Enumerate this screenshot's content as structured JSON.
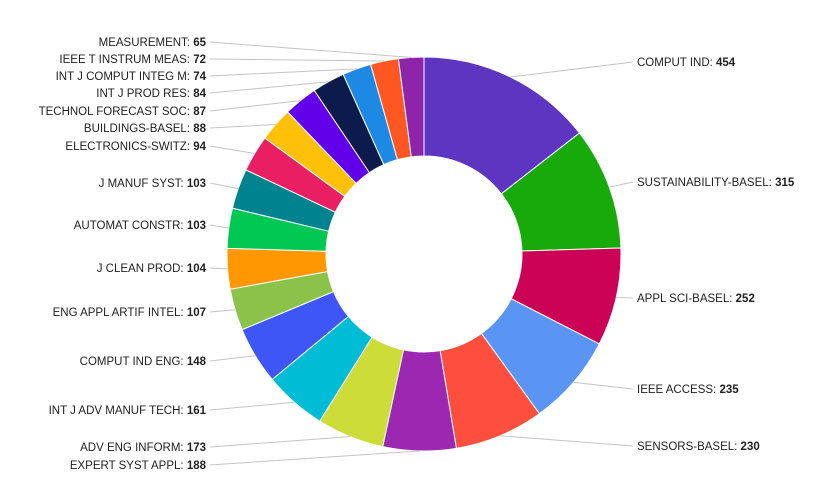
{
  "chart_data": {
    "type": "pie",
    "donut": true,
    "legend": "none",
    "series": [
      {
        "label": "COMPUT IND",
        "value": 454,
        "color": "#5e35c1"
      },
      {
        "label": "SUSTAINABILITY-BASEL",
        "value": 315,
        "color": "#18aa0b"
      },
      {
        "label": "APPL SCI-BASEL",
        "value": 252,
        "color": "#cc0256"
      },
      {
        "label": "IEEE ACCESS",
        "value": 235,
        "color": "#5b95f4"
      },
      {
        "label": "SENSORS-BASEL",
        "value": 230,
        "color": "#fd4e3e"
      },
      {
        "label": "EXPERT SYST APPL",
        "value": 188,
        "color": "#9c27b0"
      },
      {
        "label": "ADV ENG INFORM",
        "value": 173,
        "color": "#cddc39"
      },
      {
        "label": "INT J ADV MANUF TECH",
        "value": 161,
        "color": "#00bcd4"
      },
      {
        "label": "COMPUT IND ENG",
        "value": 148,
        "color": "#3d56f5"
      },
      {
        "label": "ENG APPL ARTIF INTEL",
        "value": 107,
        "color": "#8bc34a"
      },
      {
        "label": "J CLEAN PROD",
        "value": 104,
        "color": "#ff9800"
      },
      {
        "label": "AUTOMAT CONSTR",
        "value": 103,
        "color": "#00c853"
      },
      {
        "label": "J MANUF SYST",
        "value": 103,
        "color": "#00838f"
      },
      {
        "label": "ELECTRONICS-SWITZ",
        "value": 94,
        "color": "#e91e63"
      },
      {
        "label": "BUILDINGS-BASEL",
        "value": 88,
        "color": "#ffc107"
      },
      {
        "label": "TECHNOL FORECAST SOC",
        "value": 87,
        "color": "#6200ea"
      },
      {
        "label": "INT J PROD RES",
        "value": 84,
        "color": "#0d1b4c"
      },
      {
        "label": "INT J COMPUT INTEG M",
        "value": 74,
        "color": "#1e88e5"
      },
      {
        "label": "IEEE T INSTRUM MEAS",
        "value": 72,
        "color": "#ff5722"
      },
      {
        "label": "MEASUREMENT",
        "value": 65,
        "color": "#8e24aa"
      }
    ]
  }
}
